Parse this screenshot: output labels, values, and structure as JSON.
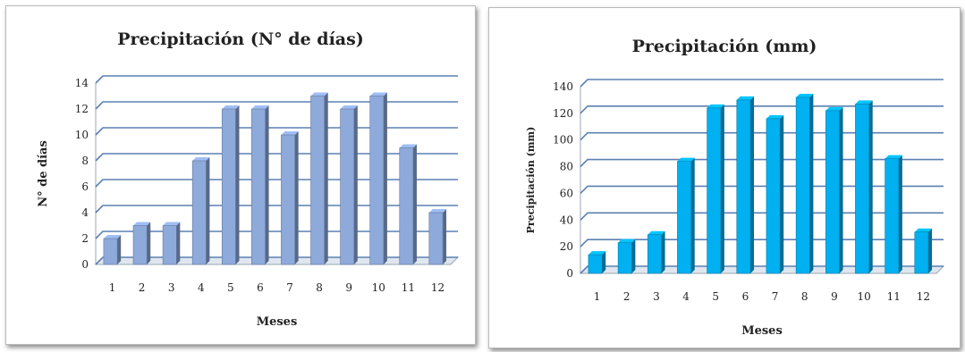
{
  "chart_data": [
    {
      "type": "bar",
      "title": "Precipitación (N° de días)",
      "xlabel": "Meses",
      "ylabel": "N° de días",
      "categories": [
        "1",
        "2",
        "3",
        "4",
        "5",
        "6",
        "7",
        "8",
        "9",
        "10",
        "11",
        "12"
      ],
      "values": [
        2,
        3,
        3,
        8,
        12,
        12,
        10,
        13,
        12,
        13,
        9,
        4
      ],
      "yticks": [
        "0",
        "2",
        "4",
        "6",
        "8",
        "10",
        "12",
        "14"
      ],
      "ylim": [
        0,
        14
      ],
      "bar_color": "#8eaadb",
      "grid": true
    },
    {
      "type": "bar",
      "title": "Precipitación (mm)",
      "xlabel": "Meses",
      "ylabel": "Precipitación (mm)",
      "categories": [
        "1",
        "2",
        "3",
        "4",
        "5",
        "6",
        "7",
        "8",
        "9",
        "10",
        "11",
        "12"
      ],
      "values": [
        14,
        23,
        29,
        84,
        124,
        130,
        116,
        132,
        122,
        127,
        86,
        31
      ],
      "yticks": [
        "0",
        "20",
        "40",
        "60",
        "80",
        "100",
        "120",
        "140"
      ],
      "ylim": [
        0,
        140
      ],
      "bar_color": "#00b0f0",
      "grid": true
    }
  ]
}
